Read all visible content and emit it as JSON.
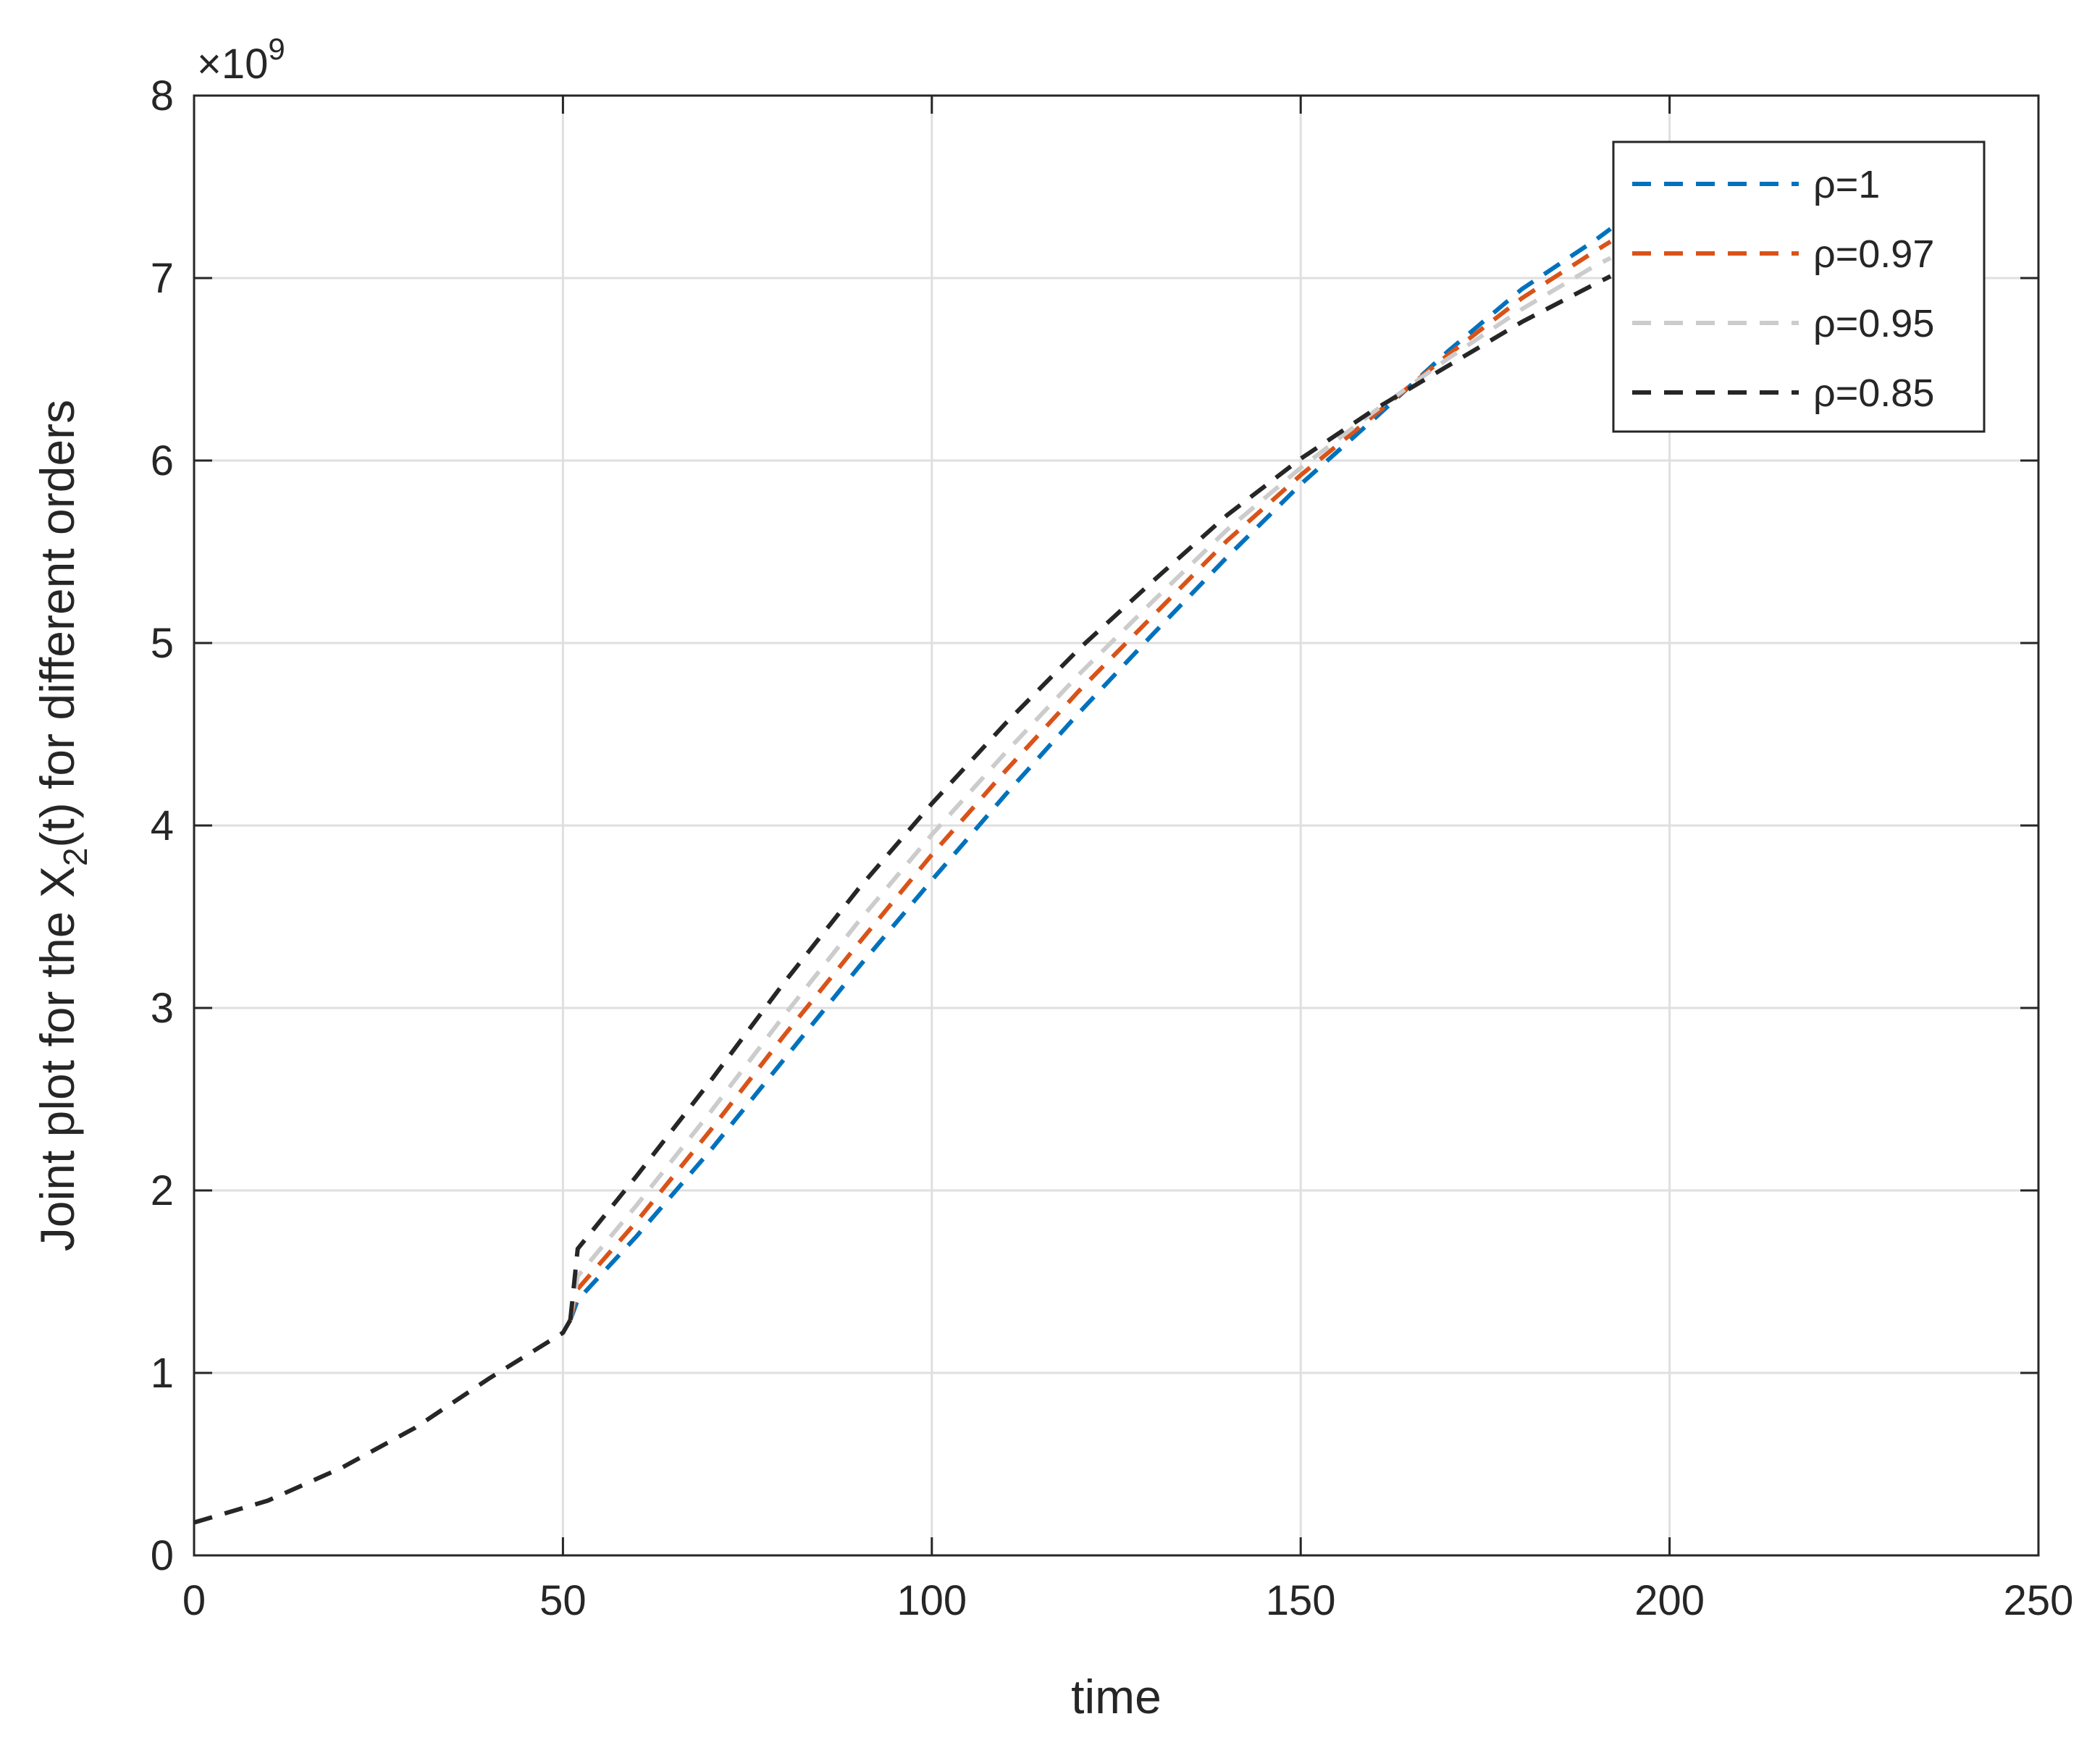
{
  "chart_data": {
    "type": "line",
    "title": "",
    "xlabel": "time",
    "ylabel_prefix": "Joint plot for the X",
    "ylabel_subscript": "2",
    "ylabel_suffix": "(t) for different orders",
    "y_exponent_label": "×10",
    "y_exponent_power": "9",
    "xlim": [
      0,
      250
    ],
    "ylim": [
      0,
      8
    ],
    "xticks": [
      0,
      50,
      100,
      150,
      200,
      250
    ],
    "yticks": [
      0,
      1,
      2,
      3,
      4,
      5,
      6,
      7,
      8
    ],
    "grid": true,
    "legend_position": "top-right",
    "shared_segment": {
      "color": "#262626",
      "x": [
        0,
        10,
        20,
        30,
        40,
        50,
        51
      ],
      "y": [
        0.18,
        0.3,
        0.48,
        0.7,
        0.97,
        1.22,
        1.29
      ]
    },
    "series": [
      {
        "name": "ρ=1",
        "color": "#0072BD",
        "x": [
          51,
          52,
          60,
          70,
          80,
          90,
          100,
          110,
          120,
          130,
          140,
          150,
          160,
          170,
          180,
          190,
          192
        ],
        "y": [
          1.29,
          1.4,
          1.75,
          2.22,
          2.72,
          3.22,
          3.7,
          4.17,
          4.62,
          5.05,
          5.47,
          5.87,
          6.23,
          6.6,
          6.94,
          7.21,
          7.27
        ]
      },
      {
        "name": "ρ=0.97",
        "color": "#D95319",
        "x": [
          51,
          52,
          60,
          70,
          80,
          90,
          100,
          110,
          120,
          130,
          140,
          150,
          160,
          170,
          180,
          190,
          192
        ],
        "y": [
          1.29,
          1.46,
          1.83,
          2.33,
          2.85,
          3.35,
          3.84,
          4.3,
          4.74,
          5.15,
          5.56,
          5.92,
          6.25,
          6.58,
          6.89,
          7.15,
          7.2
        ]
      },
      {
        "name": "ρ=0.95",
        "color": "#CCCCCC",
        "x": [
          51,
          52,
          60,
          70,
          80,
          90,
          100,
          110,
          120,
          130,
          140,
          150,
          160,
          170,
          180,
          190,
          192
        ],
        "y": [
          1.29,
          1.53,
          1.92,
          2.43,
          2.96,
          3.47,
          3.95,
          4.4,
          4.83,
          5.23,
          5.62,
          5.96,
          6.27,
          6.56,
          6.83,
          7.07,
          7.11
        ]
      },
      {
        "name": "ρ=0.85",
        "color": "#262626",
        "x": [
          51,
          52,
          60,
          70,
          80,
          90,
          100,
          110,
          120,
          130,
          140,
          150,
          160,
          170,
          180,
          190,
          192
        ],
        "y": [
          1.29,
          1.68,
          2.08,
          2.6,
          3.14,
          3.65,
          4.12,
          4.56,
          4.97,
          5.34,
          5.7,
          6.01,
          6.28,
          6.52,
          6.76,
          6.97,
          7.01
        ]
      }
    ]
  }
}
